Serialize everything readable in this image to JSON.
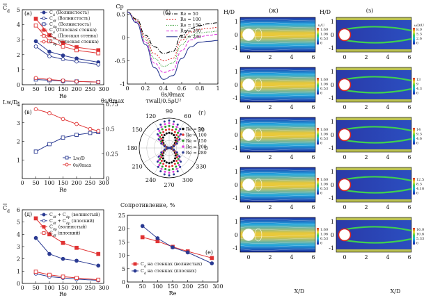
{
  "figure": {
    "panel_a": {
      "letter": "(а)",
      "ylabel_text": "C",
      "ylabel_sub": "d",
      "xlabel": "Re",
      "legend": [
        "C<sub>d</sub> (Волнистость)",
        "C<sub>df</sub> (Волнистость)",
        "C<sub>dp</sub> (Волнистость)",
        "C<sub>d</sub> (Плоская стенка)",
        "C<sub>df</sub> (Плоская стенка)",
        "C<sub>dp</sub> (Плоская стенка)"
      ]
    },
    "panel_b": {
      "letter": "(б)",
      "ylabel": "Cp",
      "xlabel": "θs/θmax",
      "legend": [
        "Re = 50",
        "Re = 100",
        "Re = 150",
        "Re = 200",
        "Re = 280"
      ]
    },
    "panel_v": {
      "letter": "(в)",
      "ylabel_left": "Lw/D",
      "ylabel_right": "θs/θmax",
      "xlabel": "Re",
      "legend": [
        "Lw/D",
        "θs/θmax"
      ]
    },
    "panel_g": {
      "letter": "(г)",
      "title": "τwall/0.5ρU²",
      "legend": [
        "Re = 50",
        "Re = 100",
        "Re = 150",
        "Re = 200",
        "Re = 280"
      ],
      "angles": [
        "0",
        "30",
        "60",
        "90",
        "120",
        "150",
        "180",
        "210",
        "240",
        "270",
        "300",
        "330"
      ]
    },
    "panel_d": {
      "letter": "(д)",
      "ylabel_text": "C",
      "ylabel_sub": "d",
      "xlabel": "Re",
      "legend": [
        "C<sub>df</sub> + C<sub>dp</sub> (волнистый)",
        "C<sub>df</sub> + C<sub>dp</sub> (плоский)",
        "C<sub>dp</sub> (волнистый)",
        "C<sub>df</sub> (плоский)"
      ]
    },
    "panel_e": {
      "letter": "(е)",
      "title": "Сопротивление, %",
      "xlabel": "Re",
      "legend": [
        "C<sub>d</sub> на стенках (волнистых)",
        "C<sub>d</sub> на стенках (плоских)"
      ]
    },
    "panel_zh": {
      "letter": "(ж)",
      "ylabel": "H/D",
      "xlabel": "X/D",
      "cb_title": "u/U",
      "cb_values": [
        [
          "1.60",
          "1.06",
          "0.53",
          "0"
        ],
        [
          "1.60",
          "1.06",
          "0.53",
          "0"
        ],
        [
          "1.60",
          "1.06",
          "0.53",
          "0"
        ],
        [
          "1.60",
          "1.06",
          "0.53",
          "0"
        ],
        [
          "1.60",
          "1.06",
          "0.53",
          "0"
        ]
      ]
    },
    "panel_z": {
      "letter": "(з)",
      "ylabel": "H/D",
      "xlabel": "X/D",
      "cb_title": "ωD/U",
      "cb_values": [
        [
          "8.0",
          "5.3",
          "2.6",
          "0"
        ],
        [
          "13",
          "9",
          "4.3",
          "0"
        ],
        [
          "14",
          "9.3",
          "4.6",
          "0"
        ],
        [
          "12.5",
          "8.3",
          "4.16",
          "0"
        ],
        [
          "16.0",
          "10.6",
          "5.33",
          "0"
        ]
      ]
    }
  },
  "chart_data": [
    {
      "id": "a",
      "type": "line",
      "x": [
        50,
        100,
        150,
        200,
        280
      ],
      "xlim": [
        0,
        300
      ],
      "ylim": [
        0,
        5
      ],
      "series": [
        {
          "name": "Cd (Волнистость)",
          "values": [
            2.9,
            2.2,
            1.95,
            1.75,
            1.5
          ],
          "color": "#2a3a92",
          "marker": "circle-filled"
        },
        {
          "name": "Cdf (Волнистость)",
          "values": [
            2.55,
            1.9,
            1.7,
            1.55,
            1.35
          ],
          "color": "#2a3a92",
          "marker": "circle-open"
        },
        {
          "name": "Cdp (Волнистость)",
          "values": [
            0.35,
            0.3,
            0.25,
            0.22,
            0.18
          ],
          "color": "#2a3a92",
          "marker": "square-open"
        },
        {
          "name": "Cd (Плоская стенка)",
          "values": [
            4.4,
            3.3,
            2.8,
            2.5,
            2.3
          ],
          "color": "#e03333",
          "marker": "square-filled"
        },
        {
          "name": "Cdf (Плоская стенка)",
          "values": [
            3.95,
            2.9,
            2.55,
            2.3,
            2.1
          ],
          "color": "#e03333",
          "marker": "square-open"
        },
        {
          "name": "Cdp (Плоская стенка)",
          "values": [
            0.45,
            0.35,
            0.28,
            0.22,
            0.18
          ],
          "color": "#e03333",
          "marker": "circle-open"
        }
      ]
    },
    {
      "id": "b",
      "type": "line",
      "x": [
        0,
        0.1,
        0.2,
        0.3,
        0.4,
        0.5,
        0.6,
        0.7,
        0.8,
        0.9,
        1.0
      ],
      "xlim": [
        0,
        1
      ],
      "ylim": [
        -1,
        0.6
      ],
      "series": [
        {
          "name": "Re = 50",
          "values": [
            0.55,
            0.4,
            0.05,
            -0.2,
            -0.34,
            -0.3,
            0.05,
            0.2,
            0.26,
            0.3,
            0.32
          ],
          "color": "#000",
          "dash": "6,2,1,2"
        },
        {
          "name": "Re = 100",
          "values": [
            0.55,
            0.38,
            0.0,
            -0.35,
            -0.5,
            -0.45,
            -0.05,
            0.12,
            0.18,
            0.2,
            0.22
          ],
          "color": "#e03333",
          "dash": "2,2"
        },
        {
          "name": "Re = 150",
          "values": [
            0.55,
            0.36,
            -0.05,
            -0.45,
            -0.62,
            -0.55,
            -0.15,
            0.05,
            0.1,
            0.12,
            0.14
          ],
          "color": "#2a9a2a",
          "dash": "1,1.5"
        },
        {
          "name": "Re = 200",
          "values": [
            0.55,
            0.34,
            -0.1,
            -0.55,
            -0.75,
            -0.7,
            -0.28,
            -0.05,
            0.02,
            0.05,
            0.07
          ],
          "color": "#e040e0",
          "dash": "4,2"
        },
        {
          "name": "Re = 280",
          "values": [
            0.55,
            0.32,
            -0.15,
            -0.65,
            -0.9,
            -0.82,
            -0.45,
            -0.2,
            -0.1,
            -0.08,
            -0.06
          ],
          "color": "#2a3a92",
          "dash": ""
        }
      ]
    },
    {
      "id": "v",
      "type": "line",
      "x": [
        50,
        100,
        150,
        200,
        250,
        280
      ],
      "xlim": [
        0,
        300
      ],
      "ylim_left": [
        0,
        4
      ],
      "ylim_right": [
        0,
        0.75
      ],
      "series": [
        {
          "name": "Lw/D",
          "axis": "left",
          "values": [
            1.45,
            1.85,
            2.2,
            2.35,
            2.45,
            2.5
          ],
          "color": "#2a3a92",
          "marker": "square-open"
        },
        {
          "name": "θs/θmax",
          "axis": "right",
          "values": [
            0.7,
            0.66,
            0.6,
            0.55,
            0.5,
            0.48
          ],
          "color": "#e03333",
          "marker": "circle-open"
        }
      ]
    },
    {
      "id": "d",
      "type": "line",
      "x": [
        50,
        100,
        150,
        200,
        280
      ],
      "xlim": [
        0,
        300
      ],
      "ylim": [
        0,
        6
      ],
      "series": [
        {
          "name": "Cdf + Cdp (волнистый)",
          "values": [
            3.7,
            2.4,
            2.0,
            1.85,
            1.45
          ],
          "color": "#2a3a92",
          "marker": "circle-filled"
        },
        {
          "name": "Cdf + Cdp (плоский)",
          "values": [
            0.8,
            0.55,
            0.45,
            0.35,
            0.25
          ],
          "color": "#2a3a92",
          "marker": "circle-open"
        },
        {
          "name": "Cdp (волнистый)",
          "values": [
            5.3,
            4.0,
            3.3,
            2.9,
            2.4
          ],
          "color": "#e03333",
          "marker": "square-filled"
        },
        {
          "name": "Cdf (плоский)",
          "values": [
            0.95,
            0.7,
            0.55,
            0.45,
            0.3
          ],
          "color": "#e03333",
          "marker": "square-open"
        }
      ]
    },
    {
      "id": "e",
      "type": "line",
      "x": [
        50,
        100,
        150,
        200,
        280
      ],
      "xlim": [
        0,
        300
      ],
      "ylim": [
        0,
        25
      ],
      "series": [
        {
          "name": "Cd на стенках (волнистых)",
          "values": [
            16.8,
            15.3,
            13.2,
            11.5,
            9.0
          ],
          "color": "#e03333",
          "marker": "square-filled"
        },
        {
          "name": "Cd на стенках (плоских)",
          "values": [
            21.0,
            16.4,
            13.0,
            11.1,
            7.0
          ],
          "color": "#2a3a92",
          "marker": "circle-filled"
        }
      ]
    }
  ]
}
